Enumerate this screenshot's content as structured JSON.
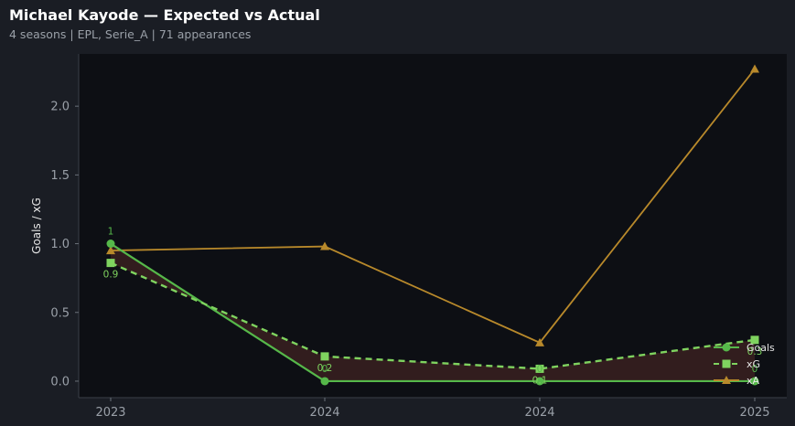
{
  "header": {
    "title": "Michael Kayode — Expected vs Actual",
    "seasons": "4 seasons",
    "leagues": "EPL, Serie_A",
    "appearances": "71 appearances",
    "separator": "|"
  },
  "colors": {
    "background": "#1a1d24",
    "plot_bg": "#0d0f14",
    "goals": "#56b84a",
    "xg": "#7fd35f",
    "xa": "#b8892b",
    "shade": "#3a2020",
    "tick_text": "#9aa0a8"
  },
  "chart_data": {
    "type": "line",
    "title": "Michael Kayode — Expected vs Actual",
    "xlabel": "",
    "ylabel": "Goals / xG",
    "categories": [
      "2023",
      "2024",
      "2024",
      "2025"
    ],
    "ylim": [
      -0.12,
      2.38
    ],
    "yticks": [
      0.0,
      0.5,
      1.0,
      1.5,
      2.0
    ],
    "ytick_labels": [
      "0.0",
      "0.5",
      "1.0",
      "1.5",
      "2.0"
    ],
    "grid": false,
    "legend_position": "bottom-right",
    "series": [
      {
        "name": "Goals",
        "style": "solid",
        "marker": "circle",
        "values": [
          1.0,
          0.0,
          0.0,
          0.0
        ]
      },
      {
        "name": "xG",
        "style": "dashed",
        "marker": "square",
        "values": [
          0.86,
          0.18,
          0.09,
          0.3
        ]
      },
      {
        "name": "xA",
        "style": "solid",
        "marker": "triangle",
        "values": [
          0.95,
          0.98,
          0.28,
          2.27
        ]
      }
    ],
    "annotations": {
      "goals_labels": [
        "1",
        "0",
        "0",
        "0"
      ],
      "xg_labels": [
        "0.9",
        "0.2",
        "0.1",
        "0.3"
      ]
    }
  }
}
